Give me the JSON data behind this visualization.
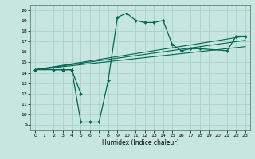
{
  "xlabel": "Humidex (Indice chaleur)",
  "bg_color": "#c8e6e0",
  "grid_color": "#a8ccc8",
  "line_color": "#006655",
  "xlim": [
    -0.5,
    23.5
  ],
  "ylim": [
    8.5,
    20.5
  ],
  "yticks": [
    9,
    10,
    11,
    12,
    13,
    14,
    15,
    16,
    17,
    18,
    19,
    20
  ],
  "xticks": [
    0,
    1,
    2,
    3,
    4,
    5,
    6,
    7,
    8,
    9,
    10,
    11,
    12,
    13,
    14,
    15,
    16,
    17,
    18,
    19,
    20,
    21,
    22,
    23
  ],
  "series_main": {
    "x": [
      0,
      1,
      2,
      3,
      4,
      5,
      6,
      7,
      8,
      9,
      10,
      11,
      12,
      13,
      14,
      15,
      16,
      17,
      18,
      21,
      22,
      23
    ],
    "y": [
      14.3,
      14.4,
      14.3,
      14.3,
      14.3,
      9.3,
      9.3,
      9.3,
      13.3,
      19.3,
      19.7,
      19.0,
      18.8,
      18.8,
      19.0,
      16.7,
      16.1,
      16.3,
      16.3,
      16.1,
      17.5,
      17.5
    ]
  },
  "series_dip": {
    "x": [
      0,
      3,
      4,
      5
    ],
    "y": [
      14.3,
      14.3,
      14.3,
      12.0
    ]
  },
  "trend_lines": [
    {
      "x": [
        0,
        23
      ],
      "y": [
        14.3,
        17.5
      ]
    },
    {
      "x": [
        0,
        23
      ],
      "y": [
        14.3,
        16.5
      ]
    },
    {
      "x": [
        0,
        23
      ],
      "y": [
        14.3,
        17.1
      ]
    }
  ]
}
